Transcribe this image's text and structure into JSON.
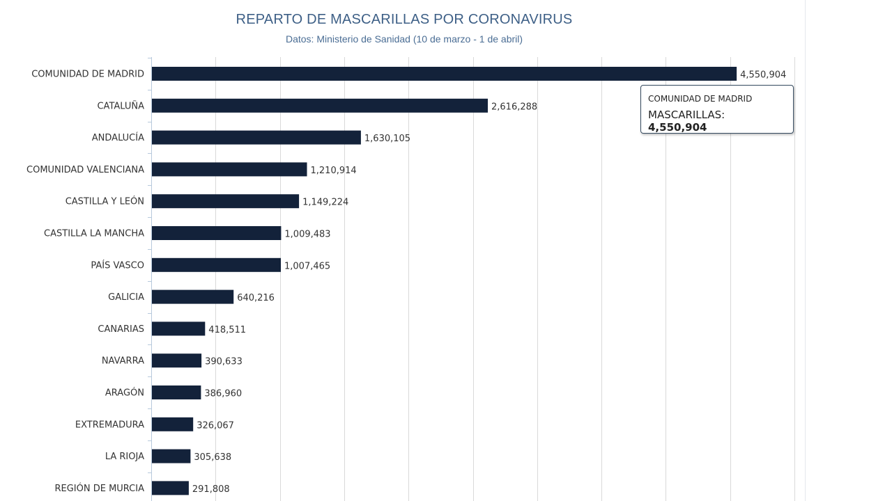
{
  "chart_data": {
    "type": "bar",
    "orientation": "horizontal",
    "title": "REPARTO DE MASCARILLAS POR CORONAVIRUS",
    "subtitle": "Datos: Ministerio de Sanidad (10 de marzo - 1 de abril)",
    "xlabel": "",
    "ylabel": "",
    "xlim": [
      0,
      5000000
    ],
    "grid": true,
    "series": [
      {
        "name": "MASCARILLAS",
        "color": "#13223a",
        "categories": [
          "COMUNIDAD DE MADRID",
          "CATALUÑA",
          "ANDALUCÍA",
          "COMUNIDAD VALENCIANA",
          "CASTILLA Y LEÓN",
          "CASTILLA LA MANCHA",
          "PAÍS VASCO",
          "GALICIA",
          "CANARIAS",
          "NAVARRA",
          "ARAGÓN",
          "EXTREMADURA",
          "LA RIOJA",
          "REGIÓN DE MURCIA"
        ],
        "values": [
          4550904,
          2616288,
          1630105,
          1210914,
          1149224,
          1009483,
          1007465,
          640216,
          418511,
          390633,
          386960,
          326067,
          305638,
          291808
        ],
        "value_labels": [
          "4,550,904",
          "2,616,288",
          "1,630,105",
          "1,210,914",
          "1,149,224",
          "1,009,483",
          "1,007,465",
          "640,216",
          "418,511",
          "390,633",
          "386,960",
          "326,067",
          "305,638",
          "291,808"
        ]
      }
    ]
  },
  "tooltip": {
    "title": "COMUNIDAD DE MADRID",
    "series_label": "MASCARILLAS:",
    "value": "4,550,904"
  }
}
